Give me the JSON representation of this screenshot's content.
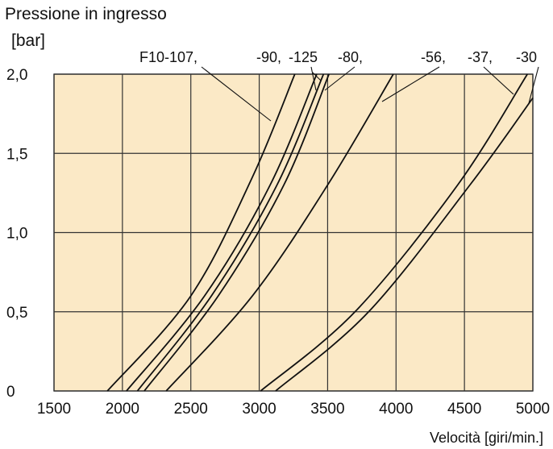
{
  "chart_data": {
    "type": "line",
    "title": "",
    "ylabel_line1": "Pressione in ingresso",
    "ylabel_line2": "[bar]",
    "xlabel": "Velocità [giri/min.]",
    "xlim": [
      1500,
      5000
    ],
    "ylim": [
      0,
      2.0
    ],
    "x_ticks": [
      1500,
      2000,
      2500,
      3000,
      3500,
      4000,
      4500,
      5000
    ],
    "x_tick_labels": [
      "1500",
      "2000",
      "2500",
      "3000",
      "3500",
      "4000",
      "4500",
      "5000"
    ],
    "y_ticks": [
      0,
      0.5,
      1.0,
      1.5,
      2.0
    ],
    "y_tick_labels": [
      "0",
      "0,5",
      "1,0",
      "1,5",
      "2,0"
    ],
    "grid": true,
    "background_color": "#fbe9c6",
    "line_color": "#111111",
    "series": [
      {
        "label": "F10-107,",
        "x": [
          1890,
          2500,
          2950,
          3260
        ],
        "y": [
          0,
          0.6,
          1.35,
          2.0
        ]
      },
      {
        "label": "-90,",
        "x": [
          2030,
          2600,
          3080,
          3420
        ],
        "y": [
          0,
          0.6,
          1.3,
          2.0
        ]
      },
      {
        "label": "-125",
        "x": [
          2110,
          2650,
          3130,
          3470
        ],
        "y": [
          0,
          0.6,
          1.3,
          2.0
        ]
      },
      {
        "label": "-80,",
        "x": [
          2160,
          2700,
          3180,
          3510
        ],
        "y": [
          0,
          0.6,
          1.3,
          2.0
        ]
      },
      {
        "label": "-56,",
        "x": [
          2320,
          2950,
          3500,
          3980
        ],
        "y": [
          0,
          0.6,
          1.3,
          2.0
        ]
      },
      {
        "label": "-37,",
        "x": [
          3010,
          3700,
          4450,
          4960
        ],
        "y": [
          0,
          0.5,
          1.3,
          2.0
        ]
      },
      {
        "label": "-30",
        "x": [
          3120,
          3800,
          4540,
          5000
        ],
        "y": [
          0,
          0.5,
          1.3,
          1.85
        ]
      }
    ]
  }
}
